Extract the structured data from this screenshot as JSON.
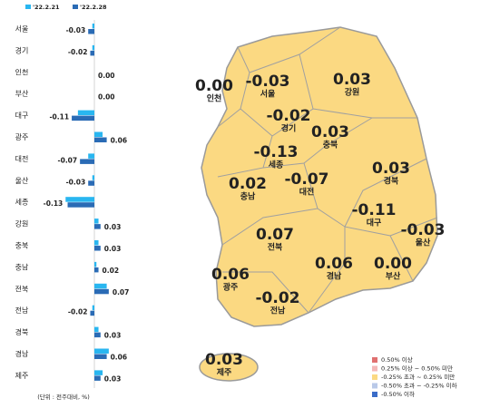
{
  "chart_data": {
    "type": "bar",
    "orientation": "horizontal",
    "unit_note": "(단위 : 전주대비, %)",
    "categories": [
      "서울",
      "경기",
      "인천",
      "부산",
      "대구",
      "광주",
      "대전",
      "울산",
      "세종",
      "강원",
      "충북",
      "충남",
      "전북",
      "전남",
      "경북",
      "경남",
      "제주"
    ],
    "xlim": [
      -0.15,
      0.15
    ],
    "series": [
      {
        "name": "'22.2.21",
        "color": "#29b6f0",
        "values": [
          -0.01,
          -0.01,
          0.0,
          0.0,
          -0.08,
          0.04,
          -0.03,
          -0.01,
          -0.14,
          0.02,
          0.02,
          0.01,
          0.06,
          -0.01,
          0.02,
          0.07,
          0.04
        ]
      },
      {
        "name": "'22.2.28",
        "color": "#2a6bb5",
        "values": [
          -0.03,
          -0.02,
          0.0,
          0.0,
          -0.11,
          0.06,
          -0.07,
          -0.03,
          -0.13,
          0.03,
          0.03,
          0.02,
          0.07,
          -0.02,
          0.03,
          0.06,
          0.03
        ],
        "value_labels": [
          "-0.03",
          "-0.02",
          "0.00",
          "0.00",
          "-0.11",
          "0.06",
          "-0.07",
          "-0.03",
          "-0.13",
          "0.03",
          "0.03",
          "0.02",
          "0.07",
          "-0.02",
          "0.03",
          "0.06",
          "0.03"
        ]
      }
    ]
  },
  "map_legend": [
    {
      "label": "0.50% 이상",
      "color": "#e07070"
    },
    {
      "label": "0.25% 이상 ~ 0.50% 미만",
      "color": "#f4b8b8"
    },
    {
      "label": "-0.25% 초과 ~ 0.25% 미만",
      "color": "#fbd982"
    },
    {
      "label": "-0.50% 초과 ~ -0.25% 이하",
      "color": "#b9c9e8"
    },
    {
      "label": "-0.50% 이하",
      "color": "#3a6cc8"
    }
  ]
}
